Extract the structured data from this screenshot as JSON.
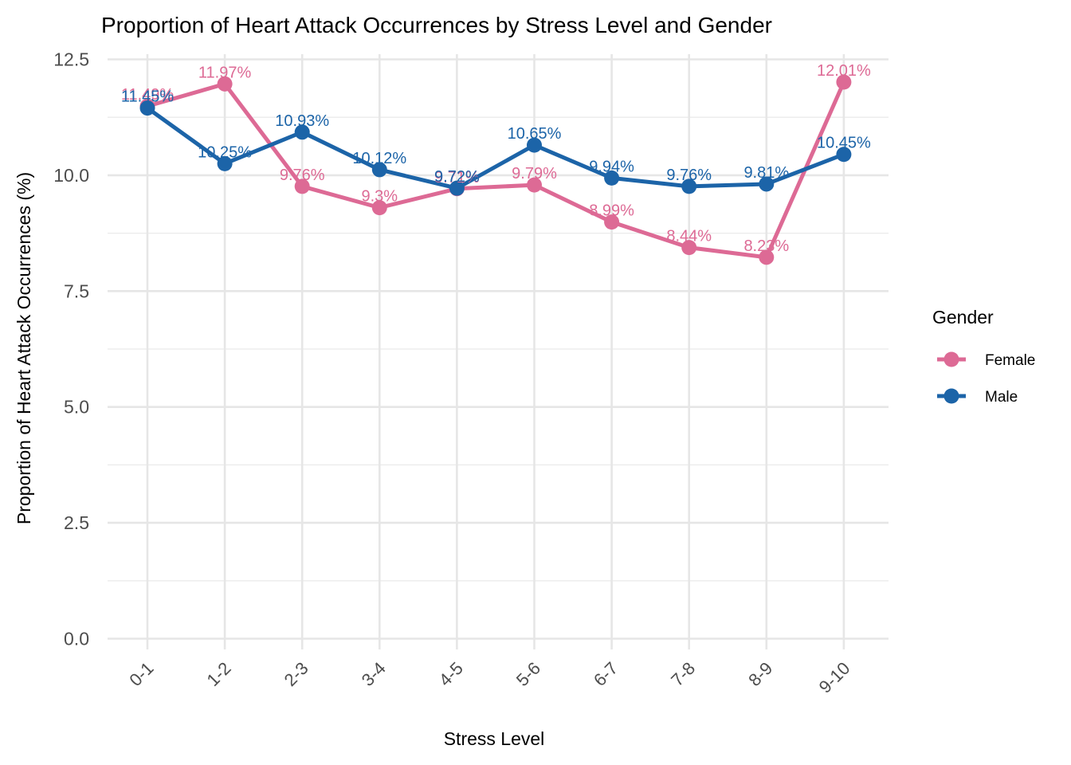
{
  "chart_data": {
    "type": "line",
    "title": "Proportion of Heart Attack Occurrences by Stress Level and Gender",
    "xlabel": "Stress Level",
    "ylabel": "Proportion of Heart Attack Occurrences (%)",
    "categories": [
      "0-1",
      "1-2",
      "2-3",
      "3-4",
      "4-5",
      "5-6",
      "6-7",
      "7-8",
      "8-9",
      "9-10"
    ],
    "ylim": [
      -0.5,
      12.5
    ],
    "yticks": [
      0.0,
      2.5,
      5.0,
      7.5,
      10.0,
      12.5
    ],
    "ytick_labels": [
      "0.0",
      "2.5",
      "5.0",
      "7.5",
      "10.0",
      "12.5"
    ],
    "grid": true,
    "legend": {
      "title": "Gender",
      "placement": "right"
    },
    "series": [
      {
        "name": "Female",
        "color": "#DD6A95",
        "values": [
          11.49,
          11.97,
          9.76,
          9.3,
          9.71,
          9.79,
          8.99,
          8.44,
          8.23,
          12.01
        ],
        "labels": [
          "11.49%",
          "11.97%",
          "9.76%",
          "9.3%",
          "9.71%",
          "9.79%",
          "8.99%",
          "8.44%",
          "8.23%",
          "12.01%"
        ]
      },
      {
        "name": "Male",
        "color": "#1C64A8",
        "values": [
          11.45,
          10.25,
          10.93,
          10.12,
          9.72,
          10.65,
          9.94,
          9.76,
          9.81,
          10.45
        ],
        "labels": [
          "11.45%",
          "10.25%",
          "10.93%",
          "10.12%",
          "9.72%",
          "10.65%",
          "9.94%",
          "9.76%",
          "9.81%",
          "10.45%"
        ]
      }
    ]
  }
}
